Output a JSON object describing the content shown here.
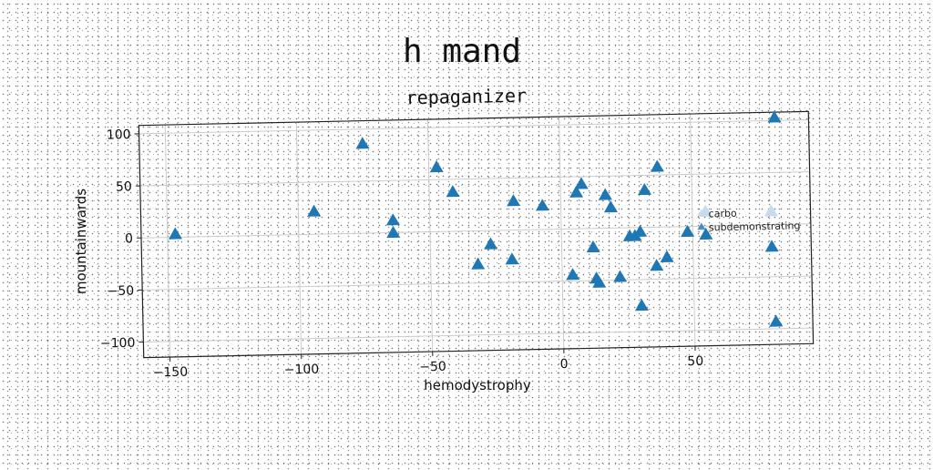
{
  "figure": {
    "suptitle": "h mand"
  },
  "chart_data": {
    "type": "scatter",
    "title": "repaganizer",
    "xlabel": "hemodystrophy",
    "ylabel": "mountainwards",
    "xlim": [
      -160,
      95
    ],
    "ylim": [
      -115,
      108
    ],
    "xticks": [
      -150,
      -100,
      -50,
      0,
      50
    ],
    "yticks": [
      -100,
      -50,
      0,
      50,
      100
    ],
    "grid": true,
    "legend_position": "center-right",
    "marker": "triangle",
    "colors": {
      "series": "#1f77b4",
      "faded": "#c6dbef"
    },
    "series": [
      {
        "name": "carbo",
        "faded": true,
        "x": [
          55,
          80
        ],
        "y": [
          13,
          12
        ]
      },
      {
        "name": "subdemonstrating",
        "faded": false,
        "x": [
          -147,
          -94,
          -75,
          -64,
          -64,
          -47,
          -41,
          -32,
          -27,
          -18,
          -19,
          -7,
          4,
          6,
          8,
          12,
          13,
          14,
          17,
          19,
          22,
          26,
          28,
          30,
          30,
          32,
          36,
          37,
          40,
          48,
          55,
          80,
          81
        ],
        "y": [
          2,
          21,
          85,
          11,
          -1,
          61,
          37,
          -33,
          -14,
          27,
          -29,
          22,
          -45,
          34,
          42,
          -19,
          -49,
          -53,
          31,
          19,
          -48,
          -9,
          -9,
          -76,
          -5,
          35,
          -38,
          57,
          -30,
          -6,
          -9,
          -22,
          -94
        ]
      }
    ],
    "extra_points": {
      "x": [
        82
      ],
      "y": [
        102
      ]
    }
  }
}
